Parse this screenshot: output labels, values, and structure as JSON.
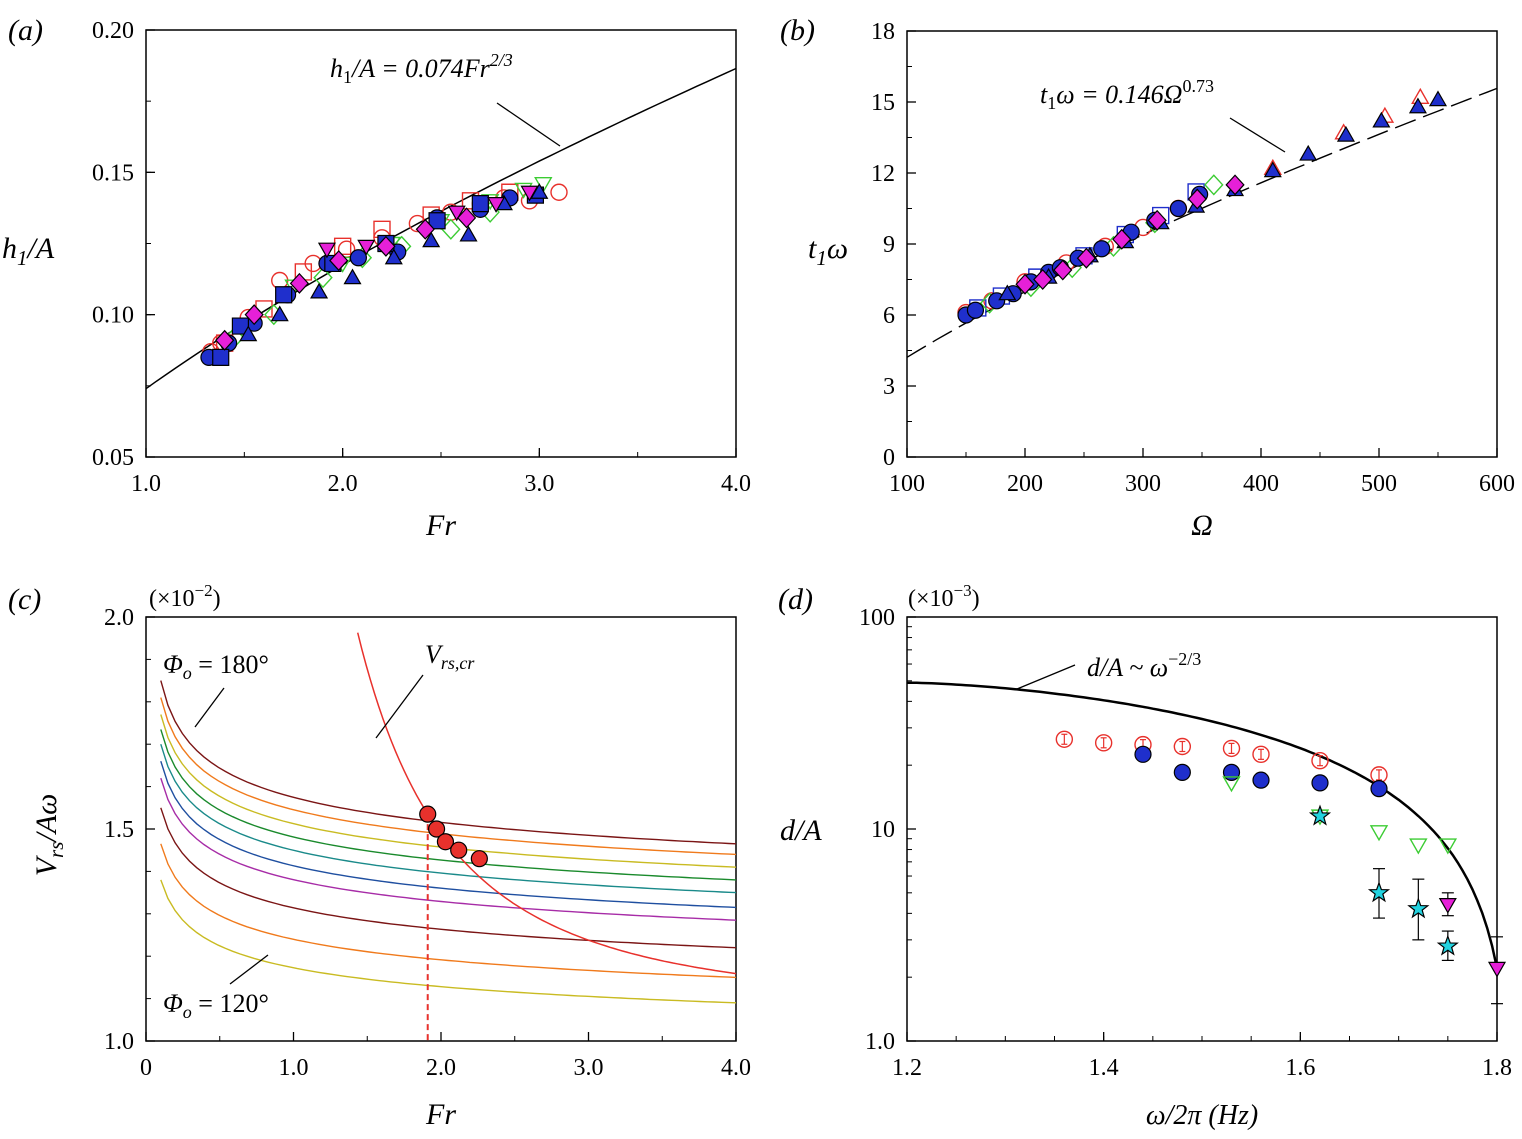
{
  "chart_data": [
    {
      "panel": "(a)",
      "type": "scatter",
      "xlabel": "Fr",
      "ylabel": "h1/A",
      "xlim": [
        1.0,
        4.0
      ],
      "ylim": [
        0.05,
        0.2
      ],
      "xticks": [
        "1.0",
        "2.0",
        "3.0",
        "4.0"
      ],
      "yticks": [
        "0.05",
        "0.10",
        "0.15",
        "0.20"
      ],
      "annotation": "h1/A = 0.074Fr^2/3",
      "fit": {
        "coef": 0.074,
        "exp": 0.6667
      },
      "series": [
        {
          "marker": "open-circle",
          "color": "#e8312c",
          "x": [
            1.33,
            1.38,
            1.52,
            1.68,
            1.85,
            2.02,
            2.2,
            2.38,
            2.55,
            2.7,
            2.82,
            2.95,
            3.1
          ],
          "y": [
            0.087,
            0.09,
            0.099,
            0.112,
            0.118,
            0.123,
            0.127,
            0.132,
            0.136,
            0.139,
            0.141,
            0.14,
            0.143
          ]
        },
        {
          "marker": "open-square",
          "color": "#e8312c",
          "x": [
            1.4,
            1.6,
            1.8,
            2.0,
            2.2,
            2.45,
            2.65,
            2.85
          ],
          "y": [
            0.09,
            0.102,
            0.115,
            0.124,
            0.13,
            0.135,
            0.14,
            0.143
          ]
        },
        {
          "marker": "open-diamond",
          "color": "#3ccc33",
          "x": [
            1.45,
            1.65,
            1.9,
            2.1,
            2.3,
            2.55,
            2.75
          ],
          "y": [
            0.092,
            0.1,
            0.113,
            0.12,
            0.124,
            0.13,
            0.136
          ]
        },
        {
          "marker": "open-triangle-down",
          "color": "#3ccc33",
          "x": [
            1.5,
            1.75,
            2.0,
            2.25,
            2.5,
            2.75,
            2.92,
            3.02
          ],
          "y": [
            0.095,
            0.11,
            0.118,
            0.125,
            0.133,
            0.14,
            0.144,
            0.146
          ]
        },
        {
          "marker": "filled-circle",
          "color": "#1f2fcc",
          "x": [
            1.32,
            1.42,
            1.55,
            1.72,
            1.92,
            2.08,
            2.28,
            2.48,
            2.7,
            2.85
          ],
          "y": [
            0.085,
            0.09,
            0.097,
            0.107,
            0.118,
            0.12,
            0.122,
            0.134,
            0.137,
            0.141
          ]
        },
        {
          "marker": "filled-square",
          "color": "#1f2fcc",
          "x": [
            1.38,
            1.48,
            1.7,
            1.95,
            2.22,
            2.48,
            2.7,
            2.98
          ],
          "y": [
            0.085,
            0.096,
            0.107,
            0.118,
            0.125,
            0.133,
            0.139,
            0.142
          ]
        },
        {
          "marker": "filled-triangle",
          "color": "#1f2fcc",
          "x": [
            1.52,
            1.68,
            1.88,
            2.05,
            2.26,
            2.45,
            2.64,
            2.82,
            3.0
          ],
          "y": [
            0.093,
            0.1,
            0.108,
            0.113,
            0.12,
            0.126,
            0.128,
            0.139,
            0.143
          ]
        },
        {
          "marker": "filled-triangle-down",
          "color": "#e620d8",
          "x": [
            1.92,
            2.12,
            2.58,
            2.78,
            2.95
          ],
          "y": [
            0.123,
            0.124,
            0.136,
            0.139,
            0.143
          ]
        },
        {
          "marker": "filled-diamond",
          "color": "#e620d8",
          "x": [
            1.4,
            1.55,
            1.78,
            1.98,
            2.22,
            2.42,
            2.63
          ],
          "y": [
            0.091,
            0.1,
            0.111,
            0.119,
            0.124,
            0.13,
            0.134
          ]
        }
      ]
    },
    {
      "panel": "(b)",
      "type": "scatter",
      "xlabel": "Ω",
      "ylabel": "t1ω",
      "xlim": [
        100,
        600
      ],
      "ylim": [
        0,
        18
      ],
      "xticks": [
        "100",
        "200",
        "300",
        "400",
        "500",
        "600"
      ],
      "yticks": [
        "0",
        "3",
        "6",
        "9",
        "12",
        "15",
        "18"
      ],
      "annotation": "t1ω = 0.146Ω^0.73",
      "fit": {
        "coef": 0.146,
        "exp": 0.73
      },
      "series": [
        {
          "marker": "open-circle",
          "color": "#e8312c",
          "x": [
            150,
            172,
            200,
            235,
            268,
            300,
            330
          ],
          "y": [
            6.1,
            6.6,
            7.4,
            8.2,
            8.9,
            9.7,
            10.5
          ]
        },
        {
          "marker": "open-triangle",
          "color": "#e8312c",
          "x": [
            410,
            470,
            505,
            535
          ],
          "y": [
            12.2,
            13.7,
            14.4,
            15.2
          ]
        },
        {
          "marker": "open-square",
          "color": "#1f2fcc",
          "x": [
            160,
            180,
            210,
            250,
            285,
            315,
            345
          ],
          "y": [
            6.3,
            6.8,
            7.6,
            8.5,
            9.4,
            10.2,
            11.2
          ]
        },
        {
          "marker": "open-diamond",
          "color": "#3ccc33",
          "x": [
            170,
            205,
            240,
            275,
            310,
            360
          ],
          "y": [
            6.5,
            7.2,
            8.0,
            8.9,
            9.9,
            11.5
          ]
        },
        {
          "marker": "filled-circle",
          "color": "#1f2fcc",
          "x": [
            150,
            158,
            176,
            190,
            205,
            220,
            230,
            245,
            265,
            290,
            310,
            330,
            348
          ],
          "y": [
            6.0,
            6.2,
            6.6,
            6.9,
            7.4,
            7.8,
            8.0,
            8.4,
            8.8,
            9.5,
            10.0,
            10.5,
            11.1
          ]
        },
        {
          "marker": "filled-triangle",
          "color": "#1f2fcc",
          "x": [
            185,
            220,
            255,
            285,
            315,
            345,
            378,
            410,
            440,
            472,
            502,
            533,
            550
          ],
          "y": [
            6.9,
            7.6,
            8.5,
            9.1,
            9.9,
            10.6,
            11.3,
            12.1,
            12.8,
            13.6,
            14.2,
            14.8,
            15.1
          ]
        },
        {
          "marker": "filled-diamond",
          "color": "#e620d8",
          "x": [
            200,
            215,
            232,
            252,
            282,
            312,
            346,
            378
          ],
          "y": [
            7.3,
            7.5,
            7.9,
            8.4,
            9.2,
            10.0,
            10.9,
            11.5
          ]
        }
      ]
    },
    {
      "panel": "(c)",
      "type": "line",
      "xlabel": "Fr",
      "ylabel": "Vrs/Aω",
      "scale_note": "(×10−2)",
      "xlim": [
        0,
        4.0
      ],
      "ylim": [
        1.0,
        2.0
      ],
      "xticks": [
        "0",
        "1.0",
        "2.0",
        "3.0",
        "4.0"
      ],
      "yticks": [
        "1.0",
        "1.5",
        "2.0"
      ],
      "top_label": "Φo = 180°",
      "bottom_label": "Φo = 120°",
      "critical_label": "Vrs,cr",
      "curves": [
        {
          "color": "#7b1515",
          "start": 1.85,
          "end": 1.465
        },
        {
          "color": "#f07a1c",
          "start": 1.81,
          "end": 1.44
        },
        {
          "color": "#c9bb22",
          "start": 1.77,
          "end": 1.41
        },
        {
          "color": "#1a8a2c",
          "start": 1.735,
          "end": 1.38
        },
        {
          "color": "#1a8a8a",
          "start": 1.7,
          "end": 1.35
        },
        {
          "color": "#1f4fa0",
          "start": 1.66,
          "end": 1.315
        },
        {
          "color": "#a72ca7",
          "start": 1.62,
          "end": 1.285
        },
        {
          "color": "#7b1515",
          "start": 1.55,
          "end": 1.22
        },
        {
          "color": "#f07a1c",
          "start": 1.465,
          "end": 1.15
        },
        {
          "color": "#c9bb22",
          "start": 1.38,
          "end": 1.09
        }
      ],
      "critical_points": {
        "x": [
          1.91,
          1.97,
          2.03,
          2.12,
          2.26
        ],
        "y": [
          1.535,
          1.5,
          1.47,
          1.45,
          1.43
        ]
      },
      "critical_fr": 1.91
    },
    {
      "panel": "(d)",
      "type": "scatter",
      "xlabel": "ω/2π (Hz)",
      "ylabel": "d/A",
      "scale_note": "(×10−3)",
      "xlim": [
        1.2,
        1.8
      ],
      "ylim": [
        1.0,
        100
      ],
      "xticks": [
        "1.2",
        "1.4",
        "1.6",
        "1.8"
      ],
      "yticks": [
        "1.0",
        "10",
        "100"
      ],
      "annotation": "d/A ~ ω−2/3",
      "series": [
        {
          "marker": "open-circle-err",
          "color": "#e8312c",
          "x": [
            1.36,
            1.4,
            1.44,
            1.48,
            1.53,
            1.56,
            1.62,
            1.68
          ],
          "y": [
            26.5,
            25.5,
            25.0,
            24.5,
            24.0,
            22.5,
            21.0,
            18.0
          ]
        },
        {
          "marker": "filled-circle",
          "color": "#1f2fcc",
          "x": [
            1.44,
            1.48,
            1.53,
            1.56,
            1.62,
            1.68
          ],
          "y": [
            22.5,
            18.5,
            18.5,
            17.0,
            16.5,
            15.5
          ]
        },
        {
          "marker": "open-triangle-down",
          "color": "#3ccc33",
          "x": [
            1.53,
            1.62,
            1.68,
            1.72,
            1.75
          ],
          "y": [
            16.5,
            11.5,
            9.7,
            8.4,
            8.4
          ]
        },
        {
          "marker": "star",
          "color": "#22d3e0",
          "x": [
            1.62,
            1.68,
            1.72,
            1.75
          ],
          "y": [
            11.5,
            5.0,
            4.2,
            2.8
          ]
        },
        {
          "marker": "filled-triangle-down",
          "color": "#e620d8",
          "x": [
            1.75,
            1.8
          ],
          "y": [
            4.4,
            2.2
          ]
        }
      ]
    }
  ],
  "labels": {
    "a": {
      "panel": "(a)",
      "x": "Fr",
      "y_main": "h",
      "y_sub": "1",
      "y_tail": "/A",
      "ann_main": "h",
      "ann_sub": "1",
      "ann_mid": "/A = 0.074",
      "ann_fr": "Fr",
      "ann_sup": "2/3"
    },
    "b": {
      "panel": "(b)",
      "x": "Ω",
      "y_main": "t",
      "y_sub": "1",
      "y_tail": "ω",
      "ann_main": "t",
      "ann_sub": "1",
      "ann_mid": "ω = 0.146",
      "ann_om": "Ω",
      "ann_sup": "0.73"
    },
    "c": {
      "panel": "(c)",
      "x": "Fr",
      "y_main": "V",
      "y_sub": "rs",
      "y_tail": "/Aω",
      "scale": "(×10",
      "scale_sup": "−2",
      "scale_end": ")",
      "phi": "Φ",
      "phi_sub": "o",
      "top_val": " = 180°",
      "bot_val": " = 120°",
      "vcr": "V",
      "vcr_sub": "rs,cr"
    },
    "d": {
      "panel": "(d)",
      "x": "ω/2π (Hz)",
      "y": "d/A",
      "scale": "(×10",
      "scale_sup": "−3",
      "scale_end": ")",
      "ann": "d/A ~ ω",
      "ann_sup": "−2/3"
    }
  }
}
